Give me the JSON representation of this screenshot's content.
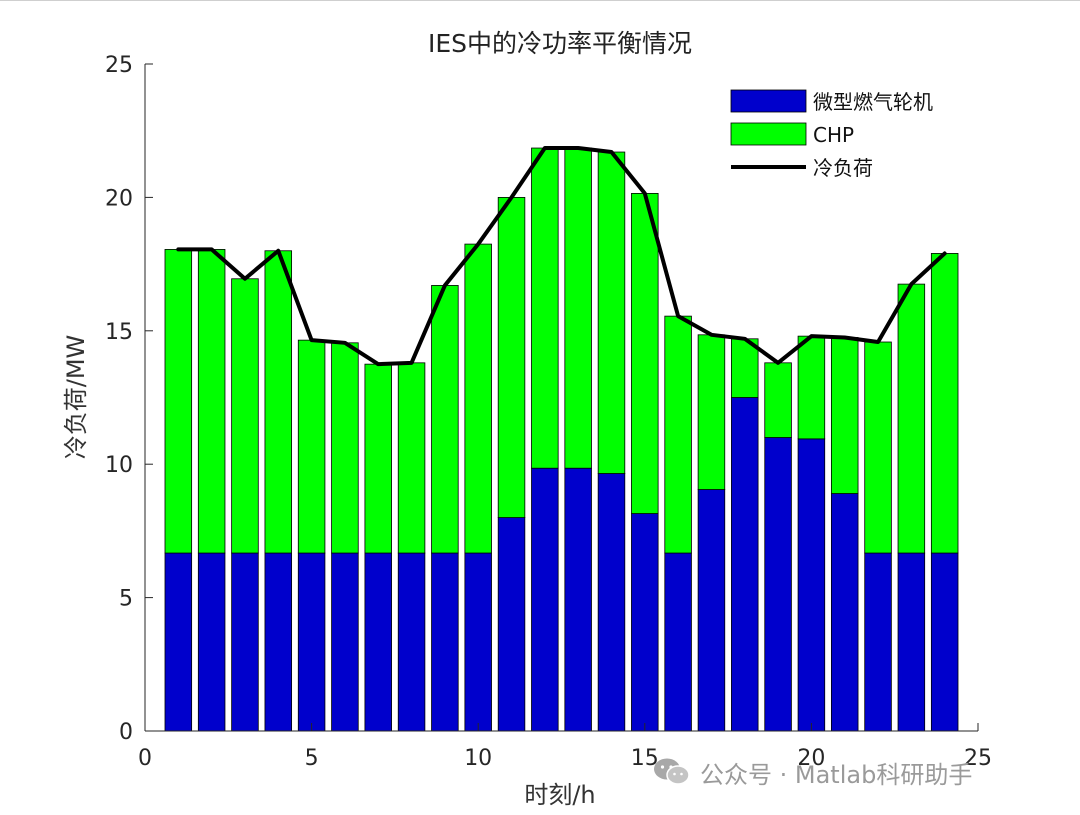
{
  "chart_data": {
    "type": "bar",
    "stacked": true,
    "title": "IES中的冷功率平衡情况",
    "xlabel": "时刻/h",
    "ylabel": "冷负荷/MW",
    "xlim": [
      0,
      25
    ],
    "ylim": [
      0,
      25
    ],
    "xticks": [
      0,
      5,
      10,
      15,
      20,
      25
    ],
    "yticks": [
      0,
      5,
      10,
      15,
      20,
      25
    ],
    "grid": false,
    "legend_position": "top-right",
    "x": [
      1,
      2,
      3,
      4,
      5,
      6,
      7,
      8,
      9,
      10,
      11,
      12,
      13,
      14,
      15,
      16,
      17,
      18,
      19,
      20,
      21,
      22,
      23,
      24
    ],
    "series": [
      {
        "name": "微型燃气轮机",
        "kind": "bar",
        "color": "#0000cc",
        "values": [
          6.67,
          6.67,
          6.67,
          6.67,
          6.67,
          6.67,
          6.67,
          6.67,
          6.67,
          6.67,
          8.0,
          9.85,
          9.85,
          9.65,
          8.15,
          6.67,
          9.05,
          12.5,
          11.0,
          10.95,
          8.9,
          6.67,
          6.67,
          6.67
        ]
      },
      {
        "name": "CHP",
        "kind": "bar",
        "color": "#00ff00",
        "values": [
          11.38,
          11.38,
          10.28,
          11.33,
          7.98,
          7.88,
          7.08,
          7.13,
          10.03,
          11.58,
          12.0,
          12.0,
          12.0,
          12.05,
          12.0,
          8.88,
          5.8,
          2.2,
          2.8,
          3.85,
          5.85,
          7.91,
          10.08,
          11.23
        ]
      },
      {
        "name": "冷负荷",
        "kind": "line",
        "color": "#000000",
        "values": [
          18.05,
          18.05,
          16.95,
          18.0,
          14.65,
          14.55,
          13.75,
          13.8,
          16.7,
          18.25,
          20.0,
          21.85,
          21.85,
          21.7,
          20.15,
          15.55,
          14.85,
          14.7,
          13.8,
          14.8,
          14.75,
          14.58,
          16.75,
          17.9
        ]
      }
    ]
  },
  "watermark": {
    "icon": "wechat-icon",
    "text": "公众号 · Matlab科研助手"
  }
}
